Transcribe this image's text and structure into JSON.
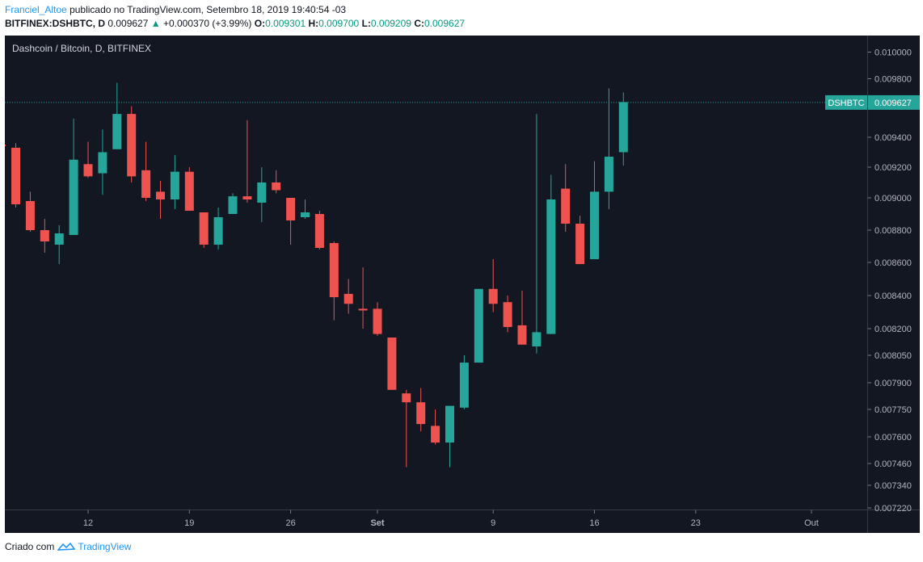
{
  "header": {
    "author": "Franciel_Altoe",
    "published_text": "publicado no TradingView.com, Setembro 18, 2019 19:40:54 -03",
    "symbol": "BITFINEX:DSHBTC, D",
    "last": "0.009627",
    "change": "+0.000370 (+3.99%)",
    "o_label": "O:",
    "o_value": "0.009301",
    "h_label": "H:",
    "h_value": "0.009700",
    "l_label": "L:",
    "l_value": "0.009209",
    "c_label": "C:",
    "c_value": "0.009627"
  },
  "footer": {
    "criado": "Criado com",
    "brand": "TradingView"
  },
  "colors": {
    "background": "#131722",
    "up": "#26a69a",
    "down": "#ef5350",
    "text": "#b2b5be",
    "price_label_bg": "#26a69a",
    "price_line": "#26a69a",
    "title": "#d1d4dc"
  },
  "chart_data": {
    "type": "candlestick",
    "title": "Dashcoin / Bitcoin, D, BITFINEX",
    "price_label": "DSHBTC",
    "last_price": 0.009627,
    "y_ticks": [
      "0.010000",
      "0.009800",
      "0.009600",
      "0.009400",
      "0.009200",
      "0.009000",
      "0.008800",
      "0.008600",
      "0.008400",
      "0.008200",
      "0.008050",
      "0.007900",
      "0.007750",
      "0.007600",
      "0.007460",
      "0.007340",
      "0.007220"
    ],
    "x_ticks": [
      {
        "label": "12",
        "index": 5
      },
      {
        "label": "19",
        "index": 12
      },
      {
        "label": "26",
        "index": 19
      },
      {
        "label": "Set",
        "index": 25
      },
      {
        "label": "9",
        "index": 33
      },
      {
        "label": "16",
        "index": 40
      },
      {
        "label": "23",
        "index": 47
      },
      {
        "label": "Out",
        "index": 55
      }
    ],
    "first_index": -1,
    "last_index": 58,
    "candles": [
      {
        "i": -1,
        "o": 0.00935,
        "h": 0.00936,
        "l": 0.00933,
        "c": 0.00934
      },
      {
        "i": 0,
        "o": 0.00933,
        "h": 0.00936,
        "l": 0.00894,
        "c": 0.00896
      },
      {
        "i": 1,
        "o": 0.00898,
        "h": 0.00904,
        "l": 0.00879,
        "c": 0.0088
      },
      {
        "i": 2,
        "o": 0.0088,
        "h": 0.00887,
        "l": 0.00866,
        "c": 0.00873
      },
      {
        "i": 3,
        "o": 0.00871,
        "h": 0.00883,
        "l": 0.00859,
        "c": 0.00878
      },
      {
        "i": 4,
        "o": 0.00877,
        "h": 0.00952,
        "l": 0.00877,
        "c": 0.00925
      },
      {
        "i": 5,
        "o": 0.00922,
        "h": 0.00937,
        "l": 0.00913,
        "c": 0.00914
      },
      {
        "i": 6,
        "o": 0.00916,
        "h": 0.00945,
        "l": 0.00902,
        "c": 0.0093
      },
      {
        "i": 7,
        "o": 0.00932,
        "h": 0.00977,
        "l": 0.00932,
        "c": 0.00955
      },
      {
        "i": 8,
        "o": 0.00955,
        "h": 0.0096,
        "l": 0.0091,
        "c": 0.00914
      },
      {
        "i": 9,
        "o": 0.00918,
        "h": 0.00937,
        "l": 0.00898,
        "c": 0.009
      },
      {
        "i": 10,
        "o": 0.00904,
        "h": 0.00911,
        "l": 0.00887,
        "c": 0.00899
      },
      {
        "i": 11,
        "o": 0.00899,
        "h": 0.00928,
        "l": 0.00893,
        "c": 0.00917
      },
      {
        "i": 12,
        "o": 0.00917,
        "h": 0.0092,
        "l": 0.00892,
        "c": 0.00892
      },
      {
        "i": 13,
        "o": 0.00891,
        "h": 0.00891,
        "l": 0.00869,
        "c": 0.00871
      },
      {
        "i": 14,
        "o": 0.00871,
        "h": 0.00894,
        "l": 0.00868,
        "c": 0.00888
      },
      {
        "i": 15,
        "o": 0.0089,
        "h": 0.00903,
        "l": 0.0089,
        "c": 0.00901
      },
      {
        "i": 16,
        "o": 0.00901,
        "h": 0.00951,
        "l": 0.00897,
        "c": 0.00899
      },
      {
        "i": 17,
        "o": 0.00897,
        "h": 0.0092,
        "l": 0.00885,
        "c": 0.0091
      },
      {
        "i": 18,
        "o": 0.0091,
        "h": 0.00918,
        "l": 0.00903,
        "c": 0.00905
      },
      {
        "i": 19,
        "o": 0.009,
        "h": 0.009,
        "l": 0.00871,
        "c": 0.00886
      },
      {
        "i": 20,
        "o": 0.00888,
        "h": 0.00899,
        "l": 0.00887,
        "c": 0.00891
      },
      {
        "i": 21,
        "o": 0.0089,
        "h": 0.00892,
        "l": 0.00868,
        "c": 0.00869
      },
      {
        "i": 22,
        "o": 0.00872,
        "h": 0.00873,
        "l": 0.00825,
        "c": 0.00839
      },
      {
        "i": 23,
        "o": 0.00841,
        "h": 0.0085,
        "l": 0.00829,
        "c": 0.00835
      },
      {
        "i": 24,
        "o": 0.00832,
        "h": 0.00857,
        "l": 0.0082,
        "c": 0.00831
      },
      {
        "i": 25,
        "o": 0.00832,
        "h": 0.00836,
        "l": 0.00816,
        "c": 0.00817
      },
      {
        "i": 26,
        "o": 0.00815,
        "h": 0.00815,
        "l": 0.00786,
        "c": 0.00786
      },
      {
        "i": 27,
        "o": 0.00784,
        "h": 0.00786,
        "l": 0.00744,
        "c": 0.00779
      },
      {
        "i": 28,
        "o": 0.00779,
        "h": 0.00787,
        "l": 0.00763,
        "c": 0.00767
      },
      {
        "i": 29,
        "o": 0.00766,
        "h": 0.00775,
        "l": 0.00756,
        "c": 0.00757
      },
      {
        "i": 30,
        "o": 0.00757,
        "h": 0.00777,
        "l": 0.00744,
        "c": 0.00777
      },
      {
        "i": 31,
        "o": 0.00776,
        "h": 0.00805,
        "l": 0.00775,
        "c": 0.00801
      },
      {
        "i": 32,
        "o": 0.00801,
        "h": 0.00844,
        "l": 0.00801,
        "c": 0.00844
      },
      {
        "i": 33,
        "o": 0.00844,
        "h": 0.00862,
        "l": 0.0083,
        "c": 0.00835
      },
      {
        "i": 34,
        "o": 0.00836,
        "h": 0.0084,
        "l": 0.00818,
        "c": 0.00821
      },
      {
        "i": 35,
        "o": 0.00822,
        "h": 0.00843,
        "l": 0.00811,
        "c": 0.00811
      },
      {
        "i": 36,
        "o": 0.0081,
        "h": 0.00955,
        "l": 0.00806,
        "c": 0.00818
      },
      {
        "i": 37,
        "o": 0.00817,
        "h": 0.00915,
        "l": 0.00817,
        "c": 0.00899
      },
      {
        "i": 38,
        "o": 0.00906,
        "h": 0.00922,
        "l": 0.00879,
        "c": 0.00884
      },
      {
        "i": 39,
        "o": 0.00884,
        "h": 0.00889,
        "l": 0.00859,
        "c": 0.00859
      },
      {
        "i": 40,
        "o": 0.00862,
        "h": 0.00924,
        "l": 0.00862,
        "c": 0.00904
      },
      {
        "i": 41,
        "o": 0.00904,
        "h": 0.00973,
        "l": 0.00893,
        "c": 0.00927
      },
      {
        "i": 42,
        "o": 0.0093,
        "h": 0.0097,
        "l": 0.00921,
        "c": 0.00963
      }
    ]
  }
}
